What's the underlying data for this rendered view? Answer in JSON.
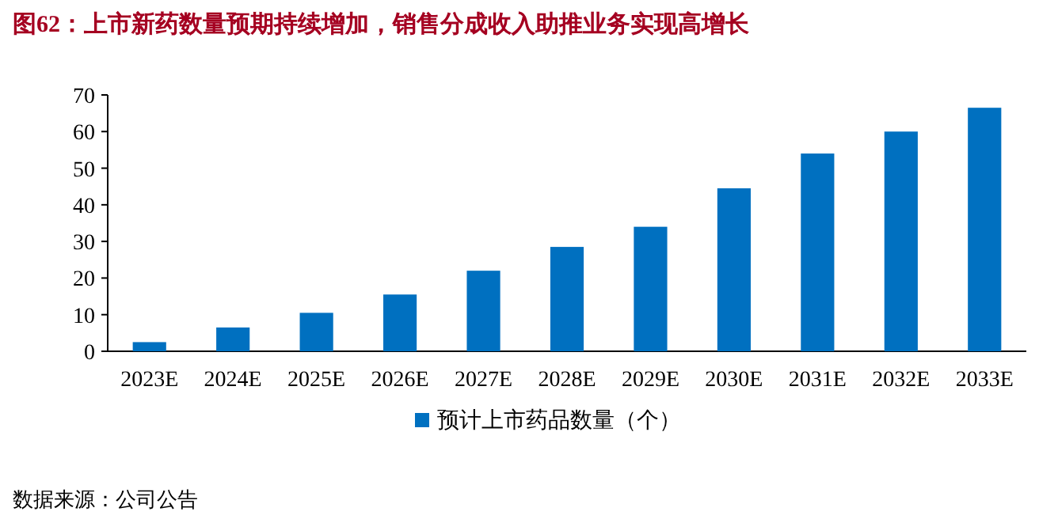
{
  "chart_data": {
    "type": "bar",
    "title": "图62：上市新药数量预期持续增加，销售分成收入助推业务实现高增长",
    "categories": [
      "2023E",
      "2024E",
      "2025E",
      "2026E",
      "2027E",
      "2028E",
      "2029E",
      "2030E",
      "2031E",
      "2032E",
      "2033E"
    ],
    "series": [
      {
        "name": "预计上市药品数量（个）",
        "color": "#0070c0",
        "values": [
          2.5,
          6.5,
          10.5,
          15.5,
          22,
          28.5,
          34,
          44.5,
          54,
          60,
          66.5
        ]
      }
    ],
    "ylim": [
      0,
      70
    ],
    "yticks": [
      0,
      10,
      20,
      30,
      40,
      50,
      60,
      70
    ],
    "legend": "bottom",
    "annotations": [
      "数据来源：公司公告"
    ]
  }
}
